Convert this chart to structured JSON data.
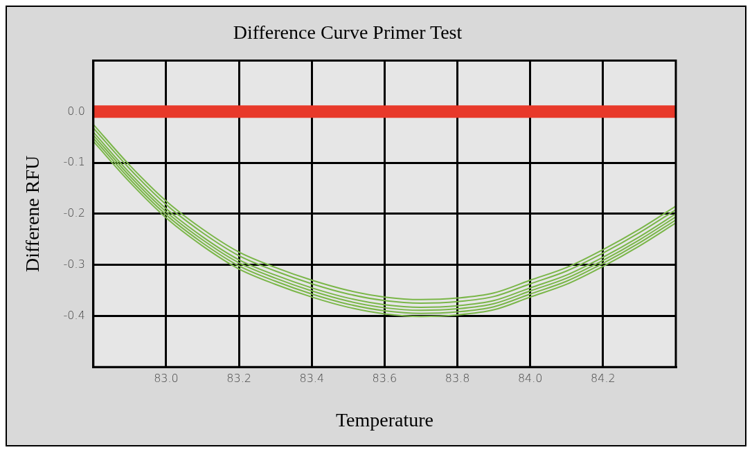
{
  "chart_data": {
    "type": "line",
    "title": "Difference Curve Primer Test",
    "xlabel": "Temperature",
    "ylabel": "Differene RFU",
    "x": [
      82.8,
      82.9,
      83.0,
      83.1,
      83.2,
      83.3,
      83.4,
      83.5,
      83.6,
      83.7,
      83.8,
      83.9,
      84.0,
      84.1,
      84.2,
      84.3,
      84.4
    ],
    "series": [
      {
        "color": "#e8392a",
        "x": [
          82.8,
          84.4
        ],
        "values": [
          0,
          0
        ]
      },
      {
        "color": "#7ab648",
        "values": [
          -0.025,
          -0.105,
          -0.175,
          -0.23,
          -0.275,
          -0.305,
          -0.33,
          -0.35,
          -0.363,
          -0.368,
          -0.365,
          -0.355,
          -0.33,
          -0.305,
          -0.27,
          -0.23,
          -0.185
        ]
      },
      {
        "color": "#7ab648",
        "values": [
          -0.032,
          -0.112,
          -0.182,
          -0.237,
          -0.282,
          -0.312,
          -0.337,
          -0.357,
          -0.37,
          -0.375,
          -0.372,
          -0.362,
          -0.337,
          -0.312,
          -0.277,
          -0.237,
          -0.192
        ]
      },
      {
        "color": "#7ab648",
        "values": [
          -0.04,
          -0.12,
          -0.19,
          -0.245,
          -0.29,
          -0.32,
          -0.345,
          -0.365,
          -0.378,
          -0.383,
          -0.38,
          -0.37,
          -0.345,
          -0.32,
          -0.285,
          -0.245,
          -0.2
        ]
      },
      {
        "color": "#7ab648",
        "values": [
          -0.046,
          -0.126,
          -0.196,
          -0.251,
          -0.296,
          -0.326,
          -0.351,
          -0.371,
          -0.384,
          -0.389,
          -0.386,
          -0.376,
          -0.351,
          -0.326,
          -0.291,
          -0.251,
          -0.206
        ]
      },
      {
        "color": "#7ab648",
        "values": [
          -0.052,
          -0.132,
          -0.202,
          -0.257,
          -0.302,
          -0.332,
          -0.357,
          -0.377,
          -0.39,
          -0.395,
          -0.392,
          -0.382,
          -0.357,
          -0.332,
          -0.297,
          -0.257,
          -0.212
        ]
      },
      {
        "color": "#7ab648",
        "values": [
          -0.058,
          -0.138,
          -0.208,
          -0.263,
          -0.308,
          -0.338,
          -0.363,
          -0.383,
          -0.396,
          -0.401,
          -0.398,
          -0.388,
          -0.363,
          -0.338,
          -0.303,
          -0.263,
          -0.218
        ]
      }
    ],
    "xlim": [
      82.8,
      84.4
    ],
    "xticks": [
      {
        "value": 83,
        "label": "83.0"
      },
      83.2,
      83.4,
      83.6,
      83.8,
      {
        "value": 84,
        "label": "84.0"
      },
      84.2
    ],
    "ylim": [
      -0.5,
      0.1
    ],
    "yticks": [
      {
        "value": 0,
        "label": "0.0"
      },
      -0.1,
      -0.2,
      -0.3,
      -0.4
    ],
    "grid": true,
    "marker": "none",
    "line_style": "solid",
    "legend": false
  }
}
